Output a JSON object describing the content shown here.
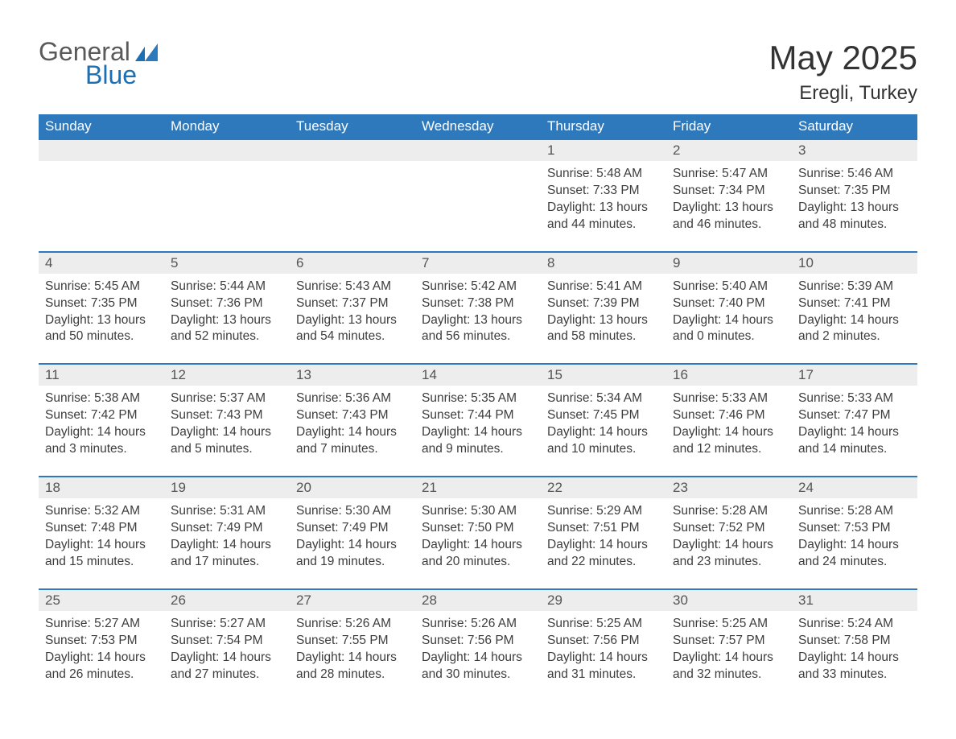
{
  "brand": {
    "general": "General",
    "blue": "Blue"
  },
  "title": "May 2025",
  "location": "Eregli, Turkey",
  "colors": {
    "header_bg": "#2e78bc",
    "header_text": "#ffffff",
    "daynum_bg": "#ededed",
    "row_border": "#2e78bc",
    "body_text": "#3d3d3d",
    "logo_blue": "#1a6fb5",
    "logo_gray": "#5a5a5a",
    "page_bg": "#ffffff"
  },
  "typography": {
    "title_fontsize": 42,
    "location_fontsize": 24,
    "dow_fontsize": 17,
    "daynum_fontsize": 17,
    "cell_fontsize": 15.5
  },
  "days_of_week": [
    "Sunday",
    "Monday",
    "Tuesday",
    "Wednesday",
    "Thursday",
    "Friday",
    "Saturday"
  ],
  "weeks": [
    [
      null,
      null,
      null,
      null,
      {
        "n": "1",
        "sunrise": "Sunrise: 5:48 AM",
        "sunset": "Sunset: 7:33 PM",
        "daylight": "Daylight: 13 hours and 44 minutes."
      },
      {
        "n": "2",
        "sunrise": "Sunrise: 5:47 AM",
        "sunset": "Sunset: 7:34 PM",
        "daylight": "Daylight: 13 hours and 46 minutes."
      },
      {
        "n": "3",
        "sunrise": "Sunrise: 5:46 AM",
        "sunset": "Sunset: 7:35 PM",
        "daylight": "Daylight: 13 hours and 48 minutes."
      }
    ],
    [
      {
        "n": "4",
        "sunrise": "Sunrise: 5:45 AM",
        "sunset": "Sunset: 7:35 PM",
        "daylight": "Daylight: 13 hours and 50 minutes."
      },
      {
        "n": "5",
        "sunrise": "Sunrise: 5:44 AM",
        "sunset": "Sunset: 7:36 PM",
        "daylight": "Daylight: 13 hours and 52 minutes."
      },
      {
        "n": "6",
        "sunrise": "Sunrise: 5:43 AM",
        "sunset": "Sunset: 7:37 PM",
        "daylight": "Daylight: 13 hours and 54 minutes."
      },
      {
        "n": "7",
        "sunrise": "Sunrise: 5:42 AM",
        "sunset": "Sunset: 7:38 PM",
        "daylight": "Daylight: 13 hours and 56 minutes."
      },
      {
        "n": "8",
        "sunrise": "Sunrise: 5:41 AM",
        "sunset": "Sunset: 7:39 PM",
        "daylight": "Daylight: 13 hours and 58 minutes."
      },
      {
        "n": "9",
        "sunrise": "Sunrise: 5:40 AM",
        "sunset": "Sunset: 7:40 PM",
        "daylight": "Daylight: 14 hours and 0 minutes."
      },
      {
        "n": "10",
        "sunrise": "Sunrise: 5:39 AM",
        "sunset": "Sunset: 7:41 PM",
        "daylight": "Daylight: 14 hours and 2 minutes."
      }
    ],
    [
      {
        "n": "11",
        "sunrise": "Sunrise: 5:38 AM",
        "sunset": "Sunset: 7:42 PM",
        "daylight": "Daylight: 14 hours and 3 minutes."
      },
      {
        "n": "12",
        "sunrise": "Sunrise: 5:37 AM",
        "sunset": "Sunset: 7:43 PM",
        "daylight": "Daylight: 14 hours and 5 minutes."
      },
      {
        "n": "13",
        "sunrise": "Sunrise: 5:36 AM",
        "sunset": "Sunset: 7:43 PM",
        "daylight": "Daylight: 14 hours and 7 minutes."
      },
      {
        "n": "14",
        "sunrise": "Sunrise: 5:35 AM",
        "sunset": "Sunset: 7:44 PM",
        "daylight": "Daylight: 14 hours and 9 minutes."
      },
      {
        "n": "15",
        "sunrise": "Sunrise: 5:34 AM",
        "sunset": "Sunset: 7:45 PM",
        "daylight": "Daylight: 14 hours and 10 minutes."
      },
      {
        "n": "16",
        "sunrise": "Sunrise: 5:33 AM",
        "sunset": "Sunset: 7:46 PM",
        "daylight": "Daylight: 14 hours and 12 minutes."
      },
      {
        "n": "17",
        "sunrise": "Sunrise: 5:33 AM",
        "sunset": "Sunset: 7:47 PM",
        "daylight": "Daylight: 14 hours and 14 minutes."
      }
    ],
    [
      {
        "n": "18",
        "sunrise": "Sunrise: 5:32 AM",
        "sunset": "Sunset: 7:48 PM",
        "daylight": "Daylight: 14 hours and 15 minutes."
      },
      {
        "n": "19",
        "sunrise": "Sunrise: 5:31 AM",
        "sunset": "Sunset: 7:49 PM",
        "daylight": "Daylight: 14 hours and 17 minutes."
      },
      {
        "n": "20",
        "sunrise": "Sunrise: 5:30 AM",
        "sunset": "Sunset: 7:49 PM",
        "daylight": "Daylight: 14 hours and 19 minutes."
      },
      {
        "n": "21",
        "sunrise": "Sunrise: 5:30 AM",
        "sunset": "Sunset: 7:50 PM",
        "daylight": "Daylight: 14 hours and 20 minutes."
      },
      {
        "n": "22",
        "sunrise": "Sunrise: 5:29 AM",
        "sunset": "Sunset: 7:51 PM",
        "daylight": "Daylight: 14 hours and 22 minutes."
      },
      {
        "n": "23",
        "sunrise": "Sunrise: 5:28 AM",
        "sunset": "Sunset: 7:52 PM",
        "daylight": "Daylight: 14 hours and 23 minutes."
      },
      {
        "n": "24",
        "sunrise": "Sunrise: 5:28 AM",
        "sunset": "Sunset: 7:53 PM",
        "daylight": "Daylight: 14 hours and 24 minutes."
      }
    ],
    [
      {
        "n": "25",
        "sunrise": "Sunrise: 5:27 AM",
        "sunset": "Sunset: 7:53 PM",
        "daylight": "Daylight: 14 hours and 26 minutes."
      },
      {
        "n": "26",
        "sunrise": "Sunrise: 5:27 AM",
        "sunset": "Sunset: 7:54 PM",
        "daylight": "Daylight: 14 hours and 27 minutes."
      },
      {
        "n": "27",
        "sunrise": "Sunrise: 5:26 AM",
        "sunset": "Sunset: 7:55 PM",
        "daylight": "Daylight: 14 hours and 28 minutes."
      },
      {
        "n": "28",
        "sunrise": "Sunrise: 5:26 AM",
        "sunset": "Sunset: 7:56 PM",
        "daylight": "Daylight: 14 hours and 30 minutes."
      },
      {
        "n": "29",
        "sunrise": "Sunrise: 5:25 AM",
        "sunset": "Sunset: 7:56 PM",
        "daylight": "Daylight: 14 hours and 31 minutes."
      },
      {
        "n": "30",
        "sunrise": "Sunrise: 5:25 AM",
        "sunset": "Sunset: 7:57 PM",
        "daylight": "Daylight: 14 hours and 32 minutes."
      },
      {
        "n": "31",
        "sunrise": "Sunrise: 5:24 AM",
        "sunset": "Sunset: 7:58 PM",
        "daylight": "Daylight: 14 hours and 33 minutes."
      }
    ]
  ]
}
